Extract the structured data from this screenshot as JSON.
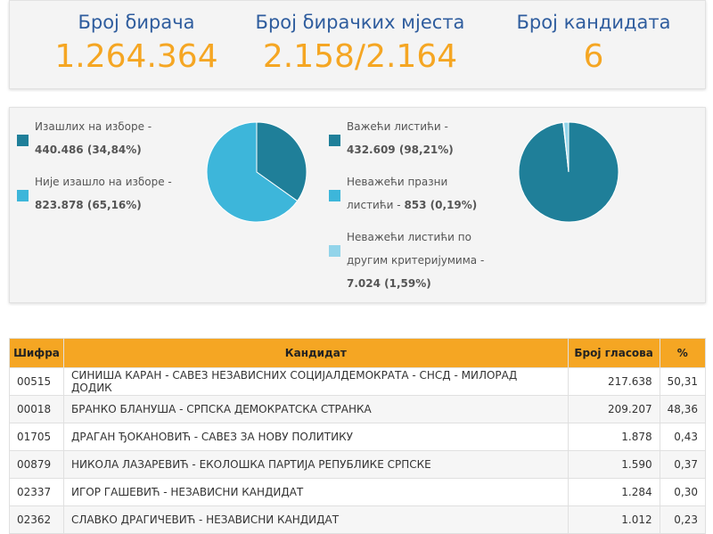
{
  "stats": [
    {
      "label": "Број бирача",
      "value": "1.264.364"
    },
    {
      "label": "Број бирачких мјеста",
      "value": "2.158/2.164"
    },
    {
      "label": "Број кандидата",
      "value": "6"
    }
  ],
  "chart_data": [
    {
      "type": "pie",
      "categories": [
        "Изашлих на изборе -",
        "Није изашло на изборе -"
      ],
      "values": [
        34.84,
        65.16
      ],
      "value_labels": [
        "440.486 (34,84%)",
        "823.878 (65,16%)"
      ],
      "colors": [
        "#1f7f99",
        "#3db6da"
      ]
    },
    {
      "type": "pie",
      "categories": [
        "Важећи листићи -",
        "Неважећи празни листићи -",
        "Неважећи листићи по другим критеријумима -"
      ],
      "values": [
        98.21,
        0.19,
        1.59
      ],
      "value_labels": [
        "432.609 (98,21%)",
        "853 (0,19%)",
        "7.024 (1,59%)"
      ],
      "colors": [
        "#1f7f99",
        "#3db6da",
        "#92d4ea"
      ]
    }
  ],
  "table": {
    "header": [
      "Шифра",
      "Кандидат",
      "Број гласова",
      "%"
    ],
    "rows": [
      [
        "00515",
        "СИНИША КАРАН - САВЕЗ НЕЗАВИСНИХ СОЦИЈАЛДЕМОКРАТА - СНСД - МИЛОРАД ДОДИК",
        "217.638",
        "50,31"
      ],
      [
        "00018",
        "БРАНКО БЛАНУША - СРПСКА ДЕМОКРАТСКА СТРАНКА",
        "209.207",
        "48,36"
      ],
      [
        "01705",
        "ДРАГАН ЂОКАНОВИЋ - САВЕЗ ЗА НОВУ ПОЛИТИКУ",
        "1.878",
        "0,43"
      ],
      [
        "00879",
        "НИКОЛА ЛАЗАРЕВИЋ - ЕКОЛОШКА ПАРТИЈА РЕПУБЛИКЕ СРПСКЕ",
        "1.590",
        "0,37"
      ],
      [
        "02337",
        "ИГОР ГАШЕВИЋ - НЕЗАВИСНИ КАНДИДАТ",
        "1.284",
        "0,30"
      ],
      [
        "02362",
        "СЛАВКО ДРАГИЧЕВИЋ - НЕЗАВИСНИ КАНДИДАТ",
        "1.012",
        "0,23"
      ]
    ]
  }
}
